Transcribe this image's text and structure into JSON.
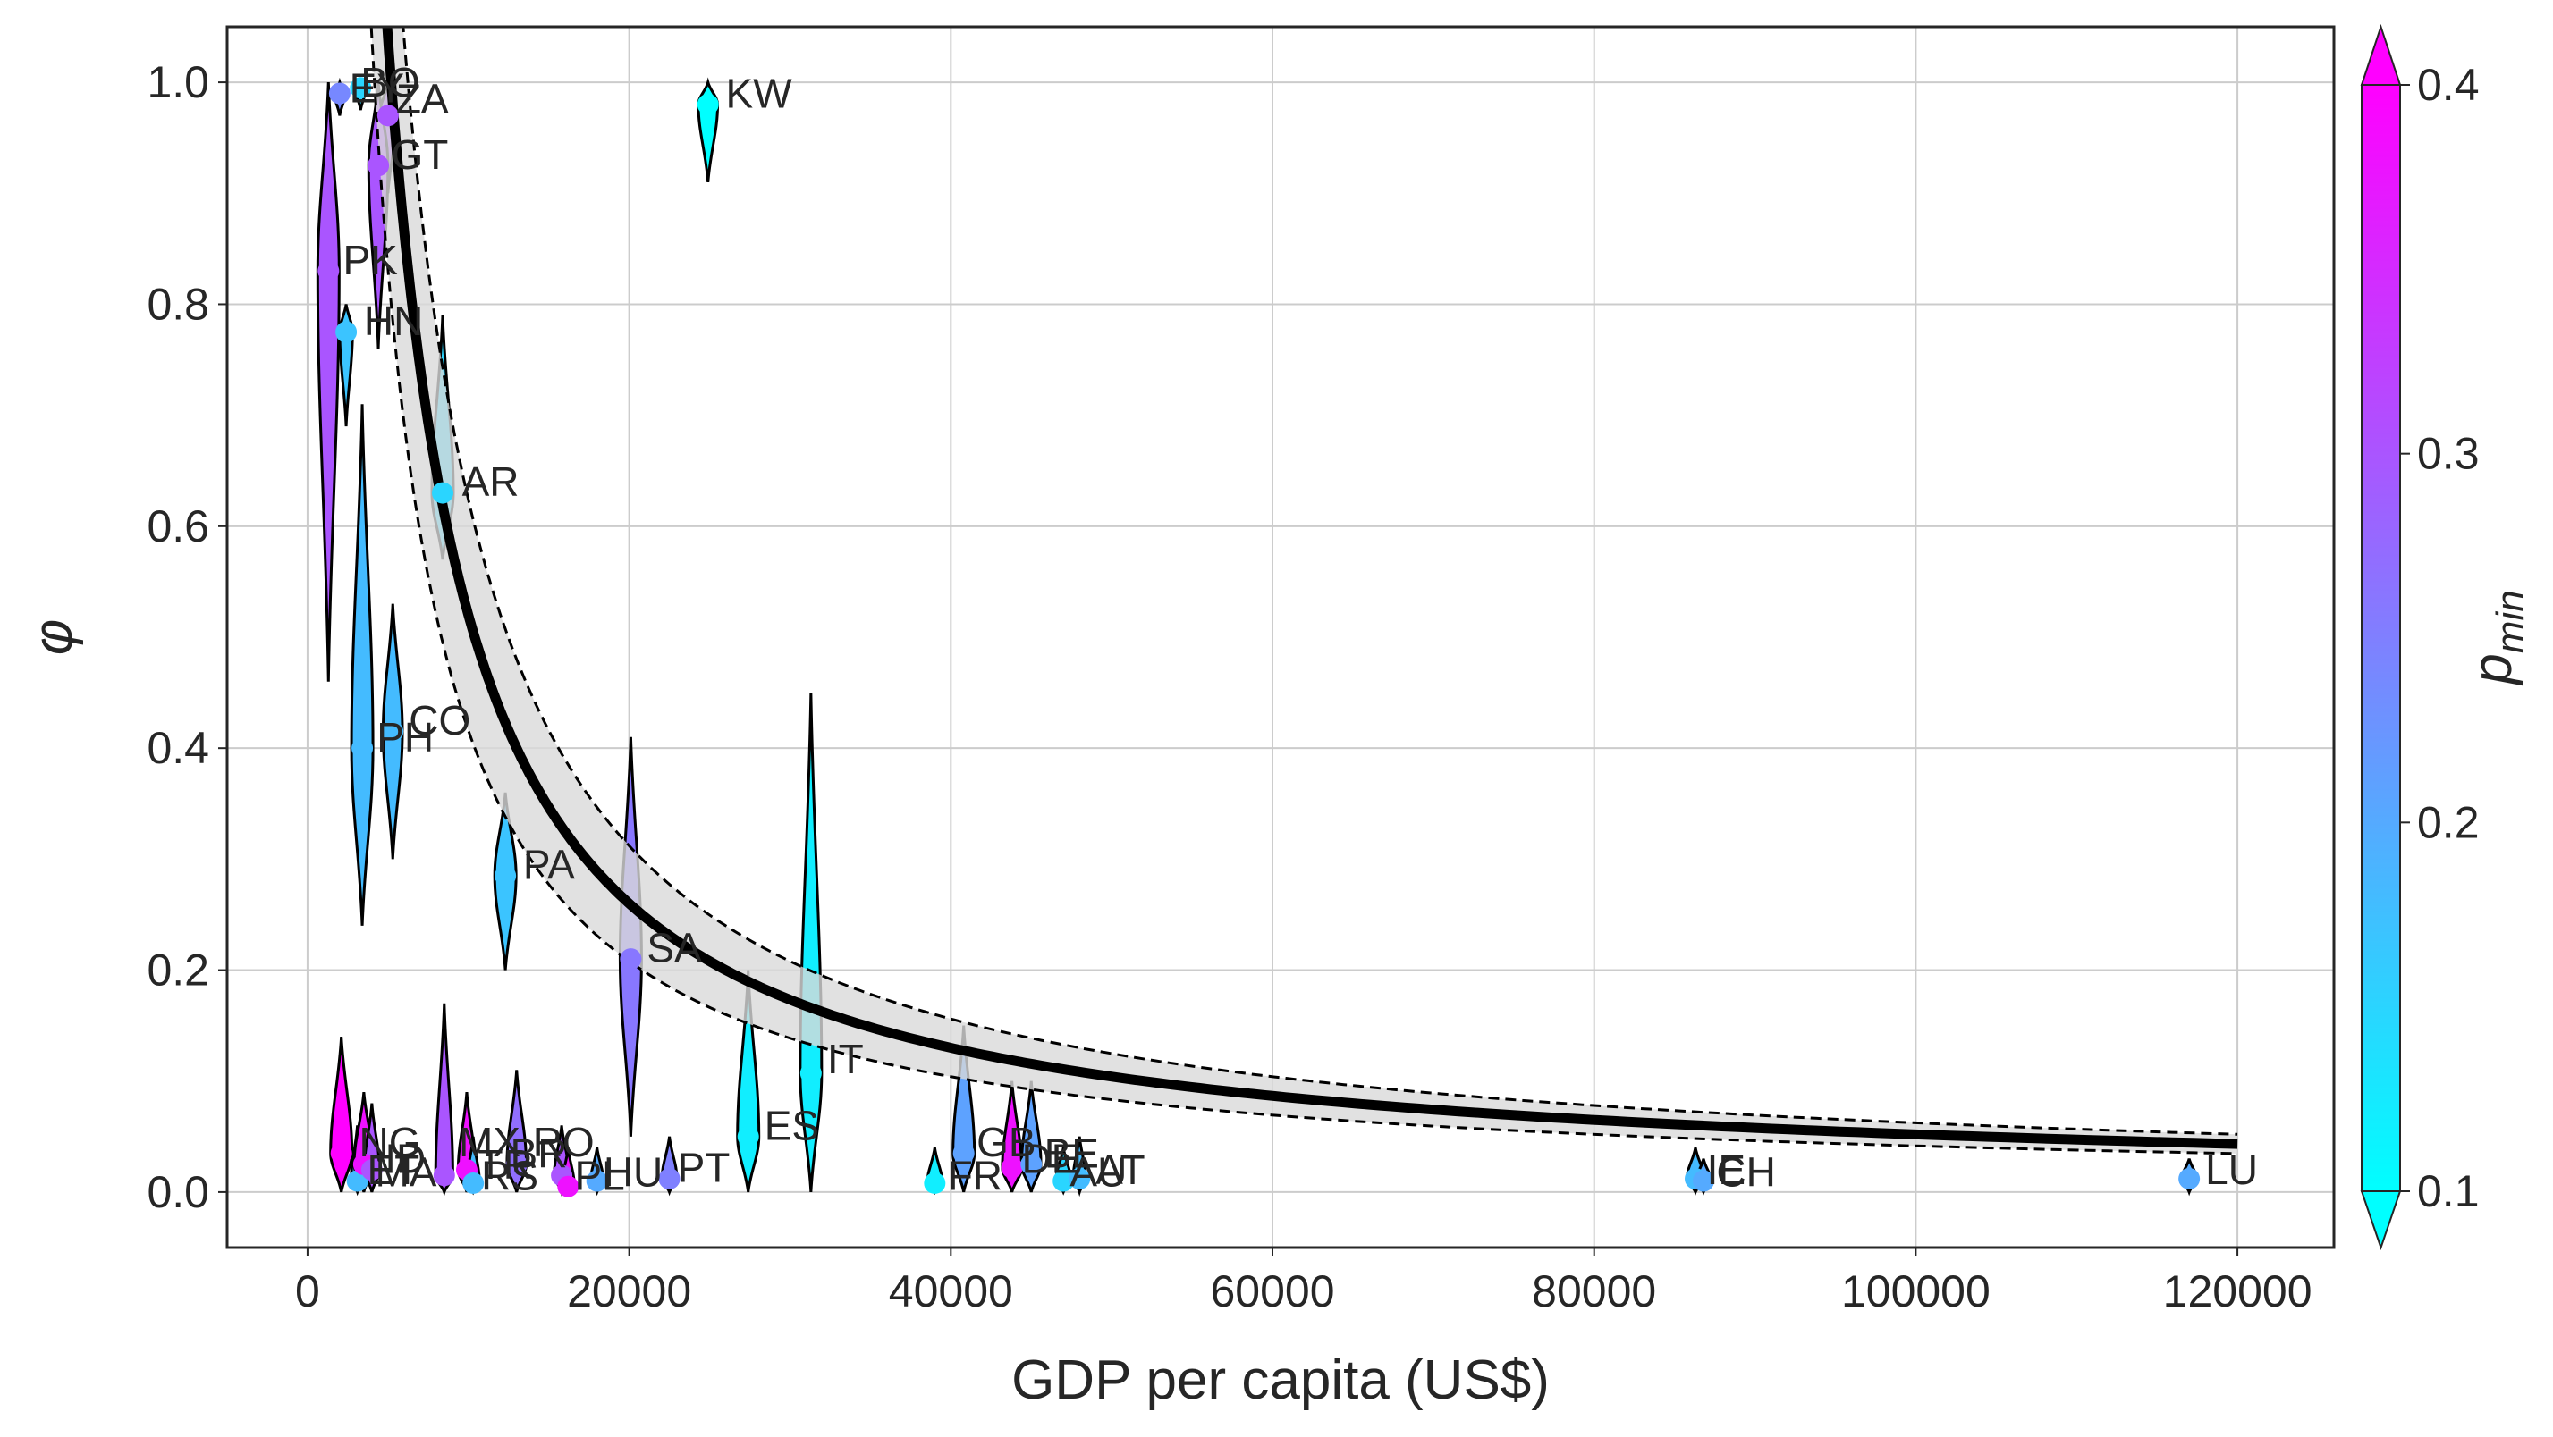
{
  "chart_data": {
    "type": "scatter",
    "xlabel": "GDP per capita (US$)",
    "ylabel": "φ",
    "xlim": [
      -5000,
      126000
    ],
    "ylim": [
      -0.05,
      1.05
    ],
    "x_ticks": [
      0,
      20000,
      40000,
      60000,
      80000,
      100000,
      120000
    ],
    "x_tick_labels": [
      "0",
      "20000",
      "40000",
      "60000",
      "80000",
      "100000",
      "120000"
    ],
    "y_ticks": [
      0.0,
      0.2,
      0.4,
      0.6,
      0.8,
      1.0
    ],
    "y_tick_labels": [
      "0.0",
      "0.2",
      "0.4",
      "0.6",
      "0.8",
      "1.0"
    ],
    "grid": true,
    "colorbar": {
      "label": "p_min",
      "label_base": "p",
      "label_sub": "min",
      "range": [
        0.1,
        0.4
      ],
      "ticks": [
        0.1,
        0.2,
        0.3,
        0.4
      ],
      "tick_labels": [
        "0.1",
        "0.2",
        "0.3",
        "0.4"
      ],
      "colormap": "cool",
      "colors": [
        "#00ffff",
        "#ff00ff"
      ],
      "extend": "both"
    },
    "fit_curve": {
      "form": "a / x",
      "a": 5200,
      "x_range": [
        1200,
        120000
      ],
      "band": [
        0.8,
        1.2
      ],
      "color": "#000000"
    },
    "points": [
      {
        "label": "BO",
        "x": 3300,
        "y": 0.995,
        "pmin": 0.15,
        "v_lo": 0.975,
        "v_hi": 1.0,
        "w": 0.5
      },
      {
        "label": "EY",
        "x": 2000,
        "y": 0.99,
        "pmin": 0.24,
        "v_lo": 0.97,
        "v_hi": 1.0,
        "w": 0.5
      },
      {
        "label": "ZA",
        "x": 5000,
        "y": 0.97,
        "pmin": 0.3,
        "v_lo": 0.9,
        "v_hi": 1.0,
        "w": 0.8
      },
      {
        "label": "GT",
        "x": 4400,
        "y": 0.925,
        "pmin": 0.3,
        "v_lo": 0.76,
        "v_hi": 1.0,
        "w": 0.9
      },
      {
        "label": "PK",
        "x": 1300,
        "y": 0.83,
        "pmin": 0.3,
        "v_lo": 0.46,
        "v_hi": 1.0,
        "w": 1.0
      },
      {
        "label": "HN",
        "x": 2400,
        "y": 0.775,
        "pmin": 0.17,
        "v_lo": 0.69,
        "v_hi": 0.8,
        "w": 0.6
      },
      {
        "label": "AR",
        "x": 8400,
        "y": 0.63,
        "pmin": 0.15,
        "v_lo": 0.57,
        "v_hi": 0.79,
        "w": 1.0
      },
      {
        "label": "CO",
        "x": 5300,
        "y": 0.415,
        "pmin": 0.18,
        "v_lo": 0.3,
        "v_hi": 0.53,
        "w": 0.9
      },
      {
        "label": "PH",
        "x": 3400,
        "y": 0.4,
        "pmin": 0.18,
        "v_lo": 0.24,
        "v_hi": 0.71,
        "w": 1.0
      },
      {
        "label": "PA",
        "x": 12300,
        "y": 0.285,
        "pmin": 0.17,
        "v_lo": 0.2,
        "v_hi": 0.36,
        "w": 1.0
      },
      {
        "label": "SA",
        "x": 20100,
        "y": 0.21,
        "pmin": 0.26,
        "v_lo": 0.05,
        "v_hi": 0.41,
        "w": 1.0
      },
      {
        "label": "IT",
        "x": 31300,
        "y": 0.107,
        "pmin": 0.12,
        "v_lo": 0.0,
        "v_hi": 0.45,
        "w": 1.0
      },
      {
        "label": "ES",
        "x": 27400,
        "y": 0.05,
        "pmin": 0.12,
        "v_lo": 0.0,
        "v_hi": 0.2,
        "w": 1.0
      },
      {
        "label": "KW",
        "x": 24900,
        "y": 0.98,
        "pmin": 0.1,
        "v_lo": 0.91,
        "v_hi": 1.0,
        "w": 0.9
      },
      {
        "label": "GB",
        "x": 40800,
        "y": 0.035,
        "pmin": 0.21,
        "v_lo": 0.0,
        "v_hi": 0.15,
        "w": 1.0
      },
      {
        "label": "DE",
        "x": 43800,
        "y": 0.022,
        "pmin": 0.38,
        "v_lo": 0.0,
        "v_hi": 0.1,
        "w": 0.9
      },
      {
        "label": "BE",
        "x": 45000,
        "y": 0.025,
        "pmin": 0.21,
        "v_lo": 0.0,
        "v_hi": 0.1,
        "w": 0.9
      },
      {
        "label": "FR",
        "x": 39000,
        "y": 0.008,
        "pmin": 0.12,
        "v_lo": 0.0,
        "v_hi": 0.04,
        "w": 0.7
      },
      {
        "label": "AU",
        "x": 47000,
        "y": 0.01,
        "pmin": 0.15,
        "v_lo": 0.0,
        "v_hi": 0.04,
        "w": 0.7
      },
      {
        "label": "AT",
        "x": 48000,
        "y": 0.012,
        "pmin": 0.18,
        "v_lo": 0.0,
        "v_hi": 0.05,
        "w": 0.6
      },
      {
        "label": "IE",
        "x": 86300,
        "y": 0.012,
        "pmin": 0.18,
        "v_lo": 0.0,
        "v_hi": 0.04,
        "w": 0.8
      },
      {
        "label": "CH",
        "x": 86800,
        "y": 0.01,
        "pmin": 0.2,
        "v_lo": 0.0,
        "v_hi": 0.03,
        "w": 0.7
      },
      {
        "label": "LU",
        "x": 117000,
        "y": 0.012,
        "pmin": 0.2,
        "v_lo": 0.0,
        "v_hi": 0.03,
        "w": 0.7
      },
      {
        "label": "NG",
        "x": 2100,
        "y": 0.035,
        "pmin": 0.4,
        "v_lo": 0.0,
        "v_hi": 0.14,
        "w": 1.0
      },
      {
        "label": "ET",
        "x": 3100,
        "y": 0.01,
        "pmin": 0.18,
        "v_lo": 0.0,
        "v_hi": 0.06,
        "w": 0.6
      },
      {
        "label": "MA",
        "x": 3500,
        "y": 0.025,
        "pmin": 0.38,
        "v_lo": 0.0,
        "v_hi": 0.09,
        "w": 0.9
      },
      {
        "label": "ID",
        "x": 4000,
        "y": 0.02,
        "pmin": 0.3,
        "v_lo": 0.0,
        "v_hi": 0.08,
        "w": 0.7
      },
      {
        "label": "MX",
        "x": 8500,
        "y": 0.015,
        "pmin": 0.3,
        "v_lo": 0.0,
        "v_hi": 0.17,
        "w": 0.8
      },
      {
        "label": "TR",
        "x": 9900,
        "y": 0.02,
        "pmin": 0.38,
        "v_lo": 0.0,
        "v_hi": 0.09,
        "w": 0.8
      },
      {
        "label": "RS",
        "x": 10300,
        "y": 0.008,
        "pmin": 0.18,
        "v_lo": 0.0,
        "v_hi": 0.05,
        "w": 0.6
      },
      {
        "label": "BR",
        "x": 13000,
        "y": 0.025,
        "pmin": 0.27,
        "v_lo": 0.0,
        "v_hi": 0.11,
        "w": 0.9
      },
      {
        "label": "RO",
        "x": 15800,
        "y": 0.015,
        "pmin": 0.3,
        "v_lo": 0.0,
        "v_hi": 0.06,
        "w": 0.7
      },
      {
        "label": "HU",
        "x": 18000,
        "y": 0.01,
        "pmin": 0.2,
        "v_lo": 0.0,
        "v_hi": 0.04,
        "w": 0.6
      },
      {
        "label": "PL",
        "x": 16200,
        "y": 0.005,
        "pmin": 0.38,
        "v_lo": 0.0,
        "v_hi": 0.04,
        "w": 0.6
      },
      {
        "label": "PT",
        "x": 22500,
        "y": 0.012,
        "pmin": 0.25,
        "v_lo": 0.0,
        "v_hi": 0.05,
        "w": 0.7
      }
    ],
    "label_positions": [
      {
        "text": "BO",
        "x": 3300,
        "y": 1.0
      },
      {
        "text": "EY",
        "x": 2600,
        "y": 0.995
      },
      {
        "text": "ZA",
        "x": 5500,
        "y": 0.985
      },
      {
        "text": "GT",
        "x": 5200,
        "y": 0.935
      },
      {
        "text": "PK",
        "x": 2200,
        "y": 0.84
      },
      {
        "text": "HN",
        "x": 3500,
        "y": 0.785
      },
      {
        "text": "AR",
        "x": 9600,
        "y": 0.64
      },
      {
        "text": "CO",
        "x": 6300,
        "y": 0.425
      },
      {
        "text": "PH",
        "x": 4300,
        "y": 0.41
      },
      {
        "text": "PA",
        "x": 13400,
        "y": 0.295
      },
      {
        "text": "SA",
        "x": 21100,
        "y": 0.22
      },
      {
        "text": "IT",
        "x": 32300,
        "y": 0.12
      },
      {
        "text": "ES",
        "x": 28400,
        "y": 0.06
      },
      {
        "text": "KW",
        "x": 26000,
        "y": 0.99
      },
      {
        "text": "GB",
        "x": 41600,
        "y": 0.045
      },
      {
        "text": "DE",
        "x": 44400,
        "y": 0.03
      },
      {
        "text": "BE",
        "x": 45800,
        "y": 0.035
      },
      {
        "text": "FR",
        "x": 39800,
        "y": 0.015
      },
      {
        "text": "AU",
        "x": 47400,
        "y": 0.018
      },
      {
        "text": "AT",
        "x": 49000,
        "y": 0.02
      },
      {
        "text": "IE",
        "x": 87000,
        "y": 0.02
      },
      {
        "text": "CH",
        "x": 87600,
        "y": 0.018
      },
      {
        "text": "LU",
        "x": 118000,
        "y": 0.02
      },
      {
        "text": "NG",
        "x": 3200,
        "y": 0.045
      },
      {
        "text": "ET",
        "x": 3700,
        "y": 0.02
      },
      {
        "text": "MA",
        "x": 4200,
        "y": 0.018
      },
      {
        "text": "ID",
        "x": 4800,
        "y": 0.03
      },
      {
        "text": "MX",
        "x": 9400,
        "y": 0.045
      },
      {
        "text": "TR",
        "x": 10600,
        "y": 0.025
      },
      {
        "text": "RS",
        "x": 10800,
        "y": 0.015
      },
      {
        "text": "BR",
        "x": 12600,
        "y": 0.035
      },
      {
        "text": "RO",
        "x": 14000,
        "y": 0.045
      },
      {
        "text": "HU",
        "x": 18400,
        "y": 0.018
      },
      {
        "text": "PL",
        "x": 16600,
        "y": 0.015
      },
      {
        "text": "PT",
        "x": 23000,
        "y": 0.022
      }
    ]
  }
}
